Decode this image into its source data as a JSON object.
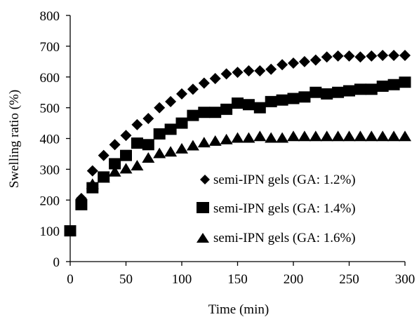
{
  "chart_data": {
    "type": "scatter",
    "title": "",
    "xlabel": "Time (min)",
    "ylabel": "Swelling ratio (%)",
    "xlim": [
      0,
      300
    ],
    "ylim": [
      0,
      800
    ],
    "xticks": [
      "0",
      "50",
      "100",
      "150",
      "200",
      "250",
      "300"
    ],
    "yticks": [
      "0",
      "100",
      "200",
      "300",
      "400",
      "500",
      "600",
      "700",
      "800"
    ],
    "grid": false,
    "legend_position": "bottom-right",
    "series": [
      {
        "name": "semi-IPN gels (GA: 1.2%)",
        "marker": "diamond",
        "color": "#000000",
        "x": [
          10,
          20,
          30,
          40,
          50,
          60,
          70,
          80,
          90,
          100,
          110,
          120,
          130,
          140,
          150,
          160,
          170,
          180,
          190,
          200,
          210,
          220,
          230,
          240,
          250,
          260,
          270,
          280,
          290,
          300
        ],
        "y": [
          205,
          295,
          345,
          380,
          410,
          445,
          465,
          500,
          520,
          545,
          560,
          580,
          595,
          610,
          615,
          620,
          620,
          625,
          640,
          645,
          650,
          655,
          665,
          668,
          668,
          665,
          668,
          670,
          670,
          670
        ]
      },
      {
        "name": "semi-IPN gels (GA: 1.4%)",
        "marker": "square",
        "color": "#000000",
        "x": [
          0,
          10,
          20,
          30,
          40,
          50,
          60,
          70,
          80,
          90,
          100,
          110,
          120,
          130,
          140,
          150,
          160,
          170,
          180,
          190,
          200,
          210,
          220,
          230,
          240,
          250,
          260,
          270,
          280,
          290,
          300
        ],
        "y": [
          100,
          185,
          240,
          275,
          318,
          345,
          385,
          380,
          415,
          430,
          450,
          475,
          485,
          485,
          495,
          515,
          510,
          500,
          520,
          525,
          530,
          535,
          550,
          545,
          550,
          555,
          560,
          560,
          570,
          575,
          583
        ]
      },
      {
        "name": "semi-IPN gels (GA: 1.6%)",
        "marker": "triangle",
        "color": "#000000",
        "x": [
          20,
          30,
          40,
          50,
          60,
          70,
          80,
          90,
          100,
          110,
          120,
          130,
          140,
          150,
          160,
          170,
          180,
          190,
          200,
          210,
          220,
          230,
          240,
          250,
          260,
          270,
          280,
          290,
          300
        ],
        "y": [
          250,
          270,
          290,
          300,
          310,
          335,
          350,
          355,
          365,
          375,
          385,
          390,
          395,
          400,
          400,
          405,
          400,
          400,
          405,
          405,
          405,
          405,
          405,
          405,
          405,
          405,
          405,
          405,
          405
        ]
      }
    ]
  }
}
